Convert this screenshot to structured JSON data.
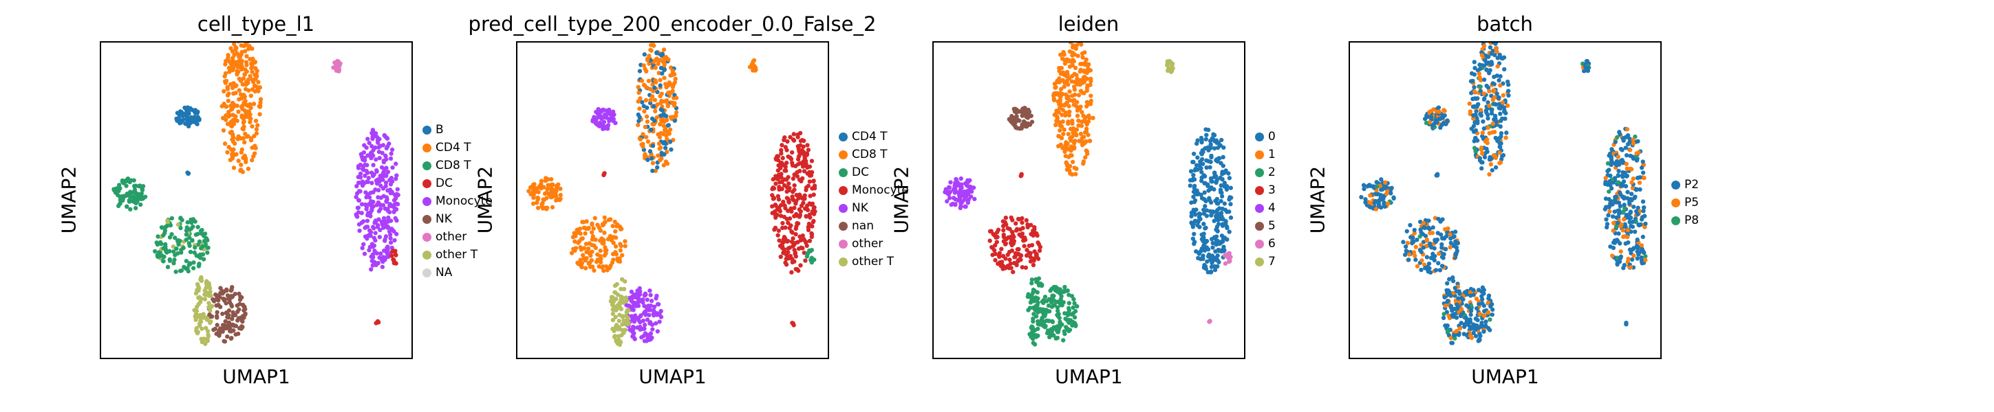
{
  "figure": "UMAP embedding panels",
  "chart_data": [
    {
      "type": "scatter",
      "title": "cell_type_l1",
      "xlabel": "UMAP1",
      "ylabel": "UMAP2",
      "legend": [
        {
          "label": "B",
          "color": "#1f77b4"
        },
        {
          "label": "CD4 T",
          "color": "#ff7f0e"
        },
        {
          "label": "CD8 T",
          "color": "#279e68"
        },
        {
          "label": "DC",
          "color": "#d62728"
        },
        {
          "label": "Monocyte",
          "color": "#aa40fc"
        },
        {
          "label": "NK",
          "color": "#8c564b"
        },
        {
          "label": "other",
          "color": "#e377c2"
        },
        {
          "label": "other T",
          "color": "#b5bd61"
        },
        {
          "label": "NA",
          "color": "#d3d3d3"
        }
      ],
      "legend_position": "right",
      "points": []
    },
    {
      "type": "scatter",
      "title": "pred_cell_type_200_encoder_0.0_False_2",
      "xlabel": "UMAP1",
      "ylabel": "UMAP2",
      "legend": [
        {
          "label": "CD4 T",
          "color": "#1f77b4"
        },
        {
          "label": "CD8 T",
          "color": "#ff7f0e"
        },
        {
          "label": "DC",
          "color": "#279e68"
        },
        {
          "label": "Monocyte",
          "color": "#d62728"
        },
        {
          "label": "NK",
          "color": "#aa40fc"
        },
        {
          "label": "nan",
          "color": "#8c564b"
        },
        {
          "label": "other",
          "color": "#e377c2"
        },
        {
          "label": "other T",
          "color": "#b5bd61"
        }
      ],
      "legend_position": "right",
      "points": []
    },
    {
      "type": "scatter",
      "title": "leiden",
      "xlabel": "UMAP1",
      "ylabel": "UMAP2",
      "legend": [
        {
          "label": "0",
          "color": "#1f77b4"
        },
        {
          "label": "1",
          "color": "#ff7f0e"
        },
        {
          "label": "2",
          "color": "#279e68"
        },
        {
          "label": "3",
          "color": "#d62728"
        },
        {
          "label": "4",
          "color": "#aa40fc"
        },
        {
          "label": "5",
          "color": "#8c564b"
        },
        {
          "label": "6",
          "color": "#e377c2"
        },
        {
          "label": "7",
          "color": "#b5bd61"
        }
      ],
      "legend_position": "right",
      "points": []
    },
    {
      "type": "scatter",
      "title": "batch",
      "xlabel": "UMAP1",
      "ylabel": "UMAP2",
      "legend": [
        {
          "label": "P2",
          "color": "#1f77b4"
        },
        {
          "label": "P5",
          "color": "#ff7f0e"
        },
        {
          "label": "P8",
          "color": "#279e68"
        }
      ],
      "legend_position": "right",
      "points": []
    }
  ]
}
